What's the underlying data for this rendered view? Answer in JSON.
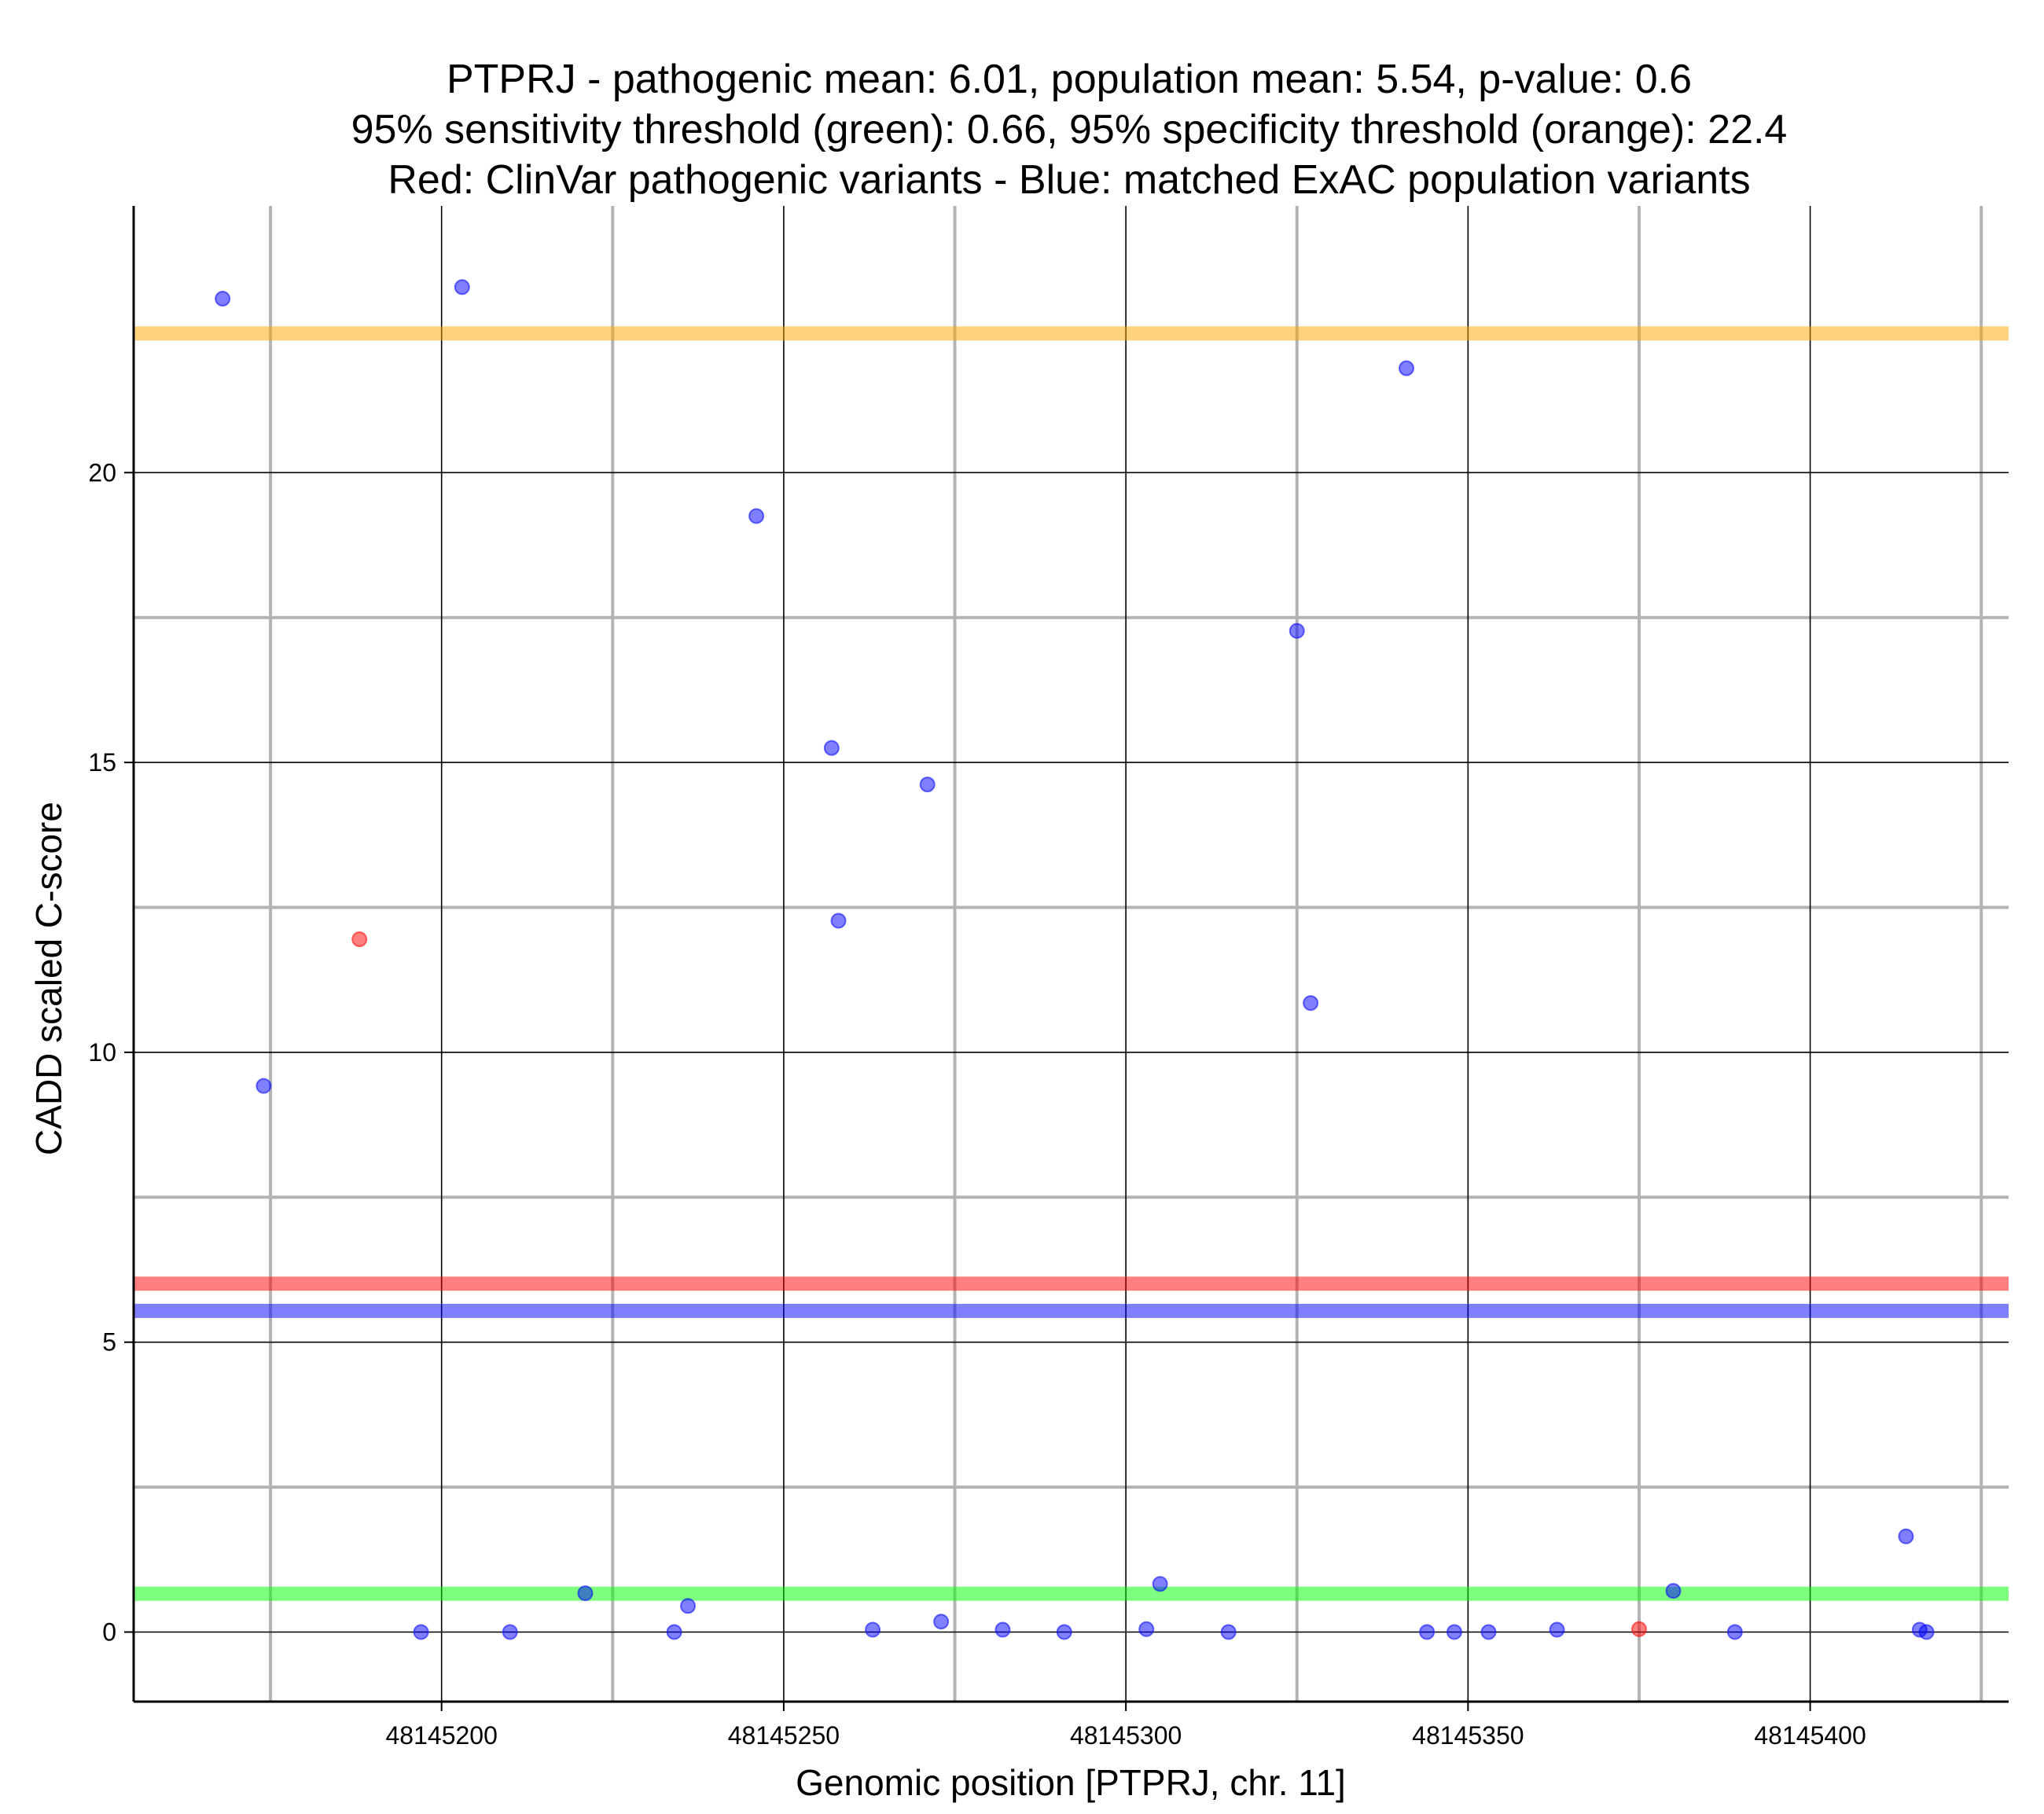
{
  "chart_data": {
    "type": "scatter",
    "title_lines": [
      "PTPRJ - pathogenic mean: 6.01, population mean: 5.54, p-value: 0.6",
      "95% sensitivity threshold (green): 0.66, 95% specificity threshold (orange): 22.4",
      "Red: ClinVar pathogenic variants - Blue: matched ExAC population variants"
    ],
    "xlabel": "Genomic position [PTPRJ, chr. 11]",
    "ylabel": "CADD scaled C-score",
    "xlim": [
      48145155,
      48145429
    ],
    "ylim": [
      -1.2,
      24.6
    ],
    "x_ticks": [
      48145200,
      48145250,
      48145300,
      48145350,
      48145400
    ],
    "x_tick_labels": [
      "48145200",
      "48145250",
      "48145300",
      "48145350",
      "48145400"
    ],
    "x_minor_grid": [
      48145175,
      48145225,
      48145275,
      48145325,
      48145375,
      48145425
    ],
    "y_ticks": [
      0,
      5,
      10,
      15,
      20
    ],
    "y_tick_labels": [
      "0",
      "5",
      "10",
      "15",
      "20"
    ],
    "y_minor_grid": [
      2.5,
      7.5,
      12.5,
      17.5
    ],
    "hlines": [
      {
        "name": "specificity-threshold",
        "value": 22.4,
        "color": "#FFA500"
      },
      {
        "name": "pathogenic-mean",
        "value": 6.01,
        "color": "#FF0000"
      },
      {
        "name": "population-mean",
        "value": 5.54,
        "color": "#0000FF"
      },
      {
        "name": "sensitivity-threshold",
        "value": 0.66,
        "color": "#00FF00"
      }
    ],
    "series": [
      {
        "name": "ClinVar pathogenic variants",
        "color": "#FF0000",
        "points": [
          {
            "x": 48145188,
            "y": 11.95
          },
          {
            "x": 48145375,
            "y": 0.05
          }
        ]
      },
      {
        "name": "matched ExAC population variants",
        "color": "#0000FF",
        "points": [
          {
            "x": 48145168,
            "y": 23.0
          },
          {
            "x": 48145174,
            "y": 9.42
          },
          {
            "x": 48145197,
            "y": 0.0
          },
          {
            "x": 48145203,
            "y": 23.2
          },
          {
            "x": 48145210,
            "y": 0.0
          },
          {
            "x": 48145221,
            "y": 0.67
          },
          {
            "x": 48145234,
            "y": 0.0
          },
          {
            "x": 48145236,
            "y": 0.45
          },
          {
            "x": 48145246,
            "y": 19.25
          },
          {
            "x": 48145257,
            "y": 15.25
          },
          {
            "x": 48145258,
            "y": 12.27
          },
          {
            "x": 48145263,
            "y": 0.04
          },
          {
            "x": 48145271,
            "y": 14.62
          },
          {
            "x": 48145273,
            "y": 0.18
          },
          {
            "x": 48145282,
            "y": 0.04
          },
          {
            "x": 48145291,
            "y": 0.0
          },
          {
            "x": 48145303,
            "y": 0.05
          },
          {
            "x": 48145305,
            "y": 0.83
          },
          {
            "x": 48145315,
            "y": 0.0
          },
          {
            "x": 48145325,
            "y": 17.27
          },
          {
            "x": 48145327,
            "y": 10.85
          },
          {
            "x": 48145341,
            "y": 21.8
          },
          {
            "x": 48145344,
            "y": 0.0
          },
          {
            "x": 48145348,
            "y": 0.0
          },
          {
            "x": 48145353,
            "y": 0.0
          },
          {
            "x": 48145363,
            "y": 0.04
          },
          {
            "x": 48145380,
            "y": 0.71
          },
          {
            "x": 48145389,
            "y": 0.0
          },
          {
            "x": 48145414,
            "y": 1.65
          },
          {
            "x": 48145416,
            "y": 0.04
          },
          {
            "x": 48145417,
            "y": 0.0
          }
        ]
      }
    ]
  }
}
